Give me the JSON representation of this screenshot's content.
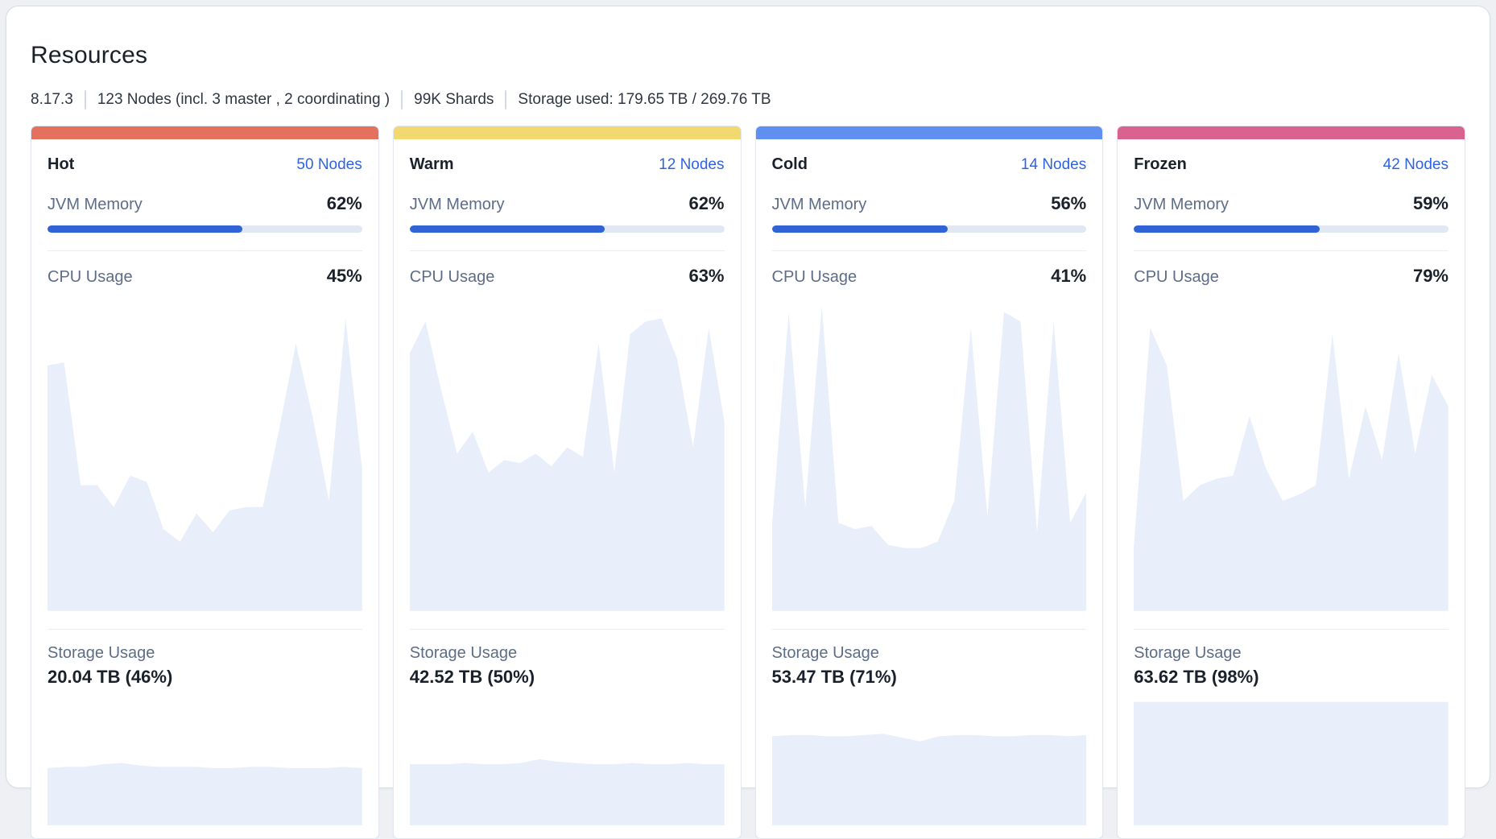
{
  "header": {
    "title": "Resources",
    "stats": [
      {
        "text": "8.17.3"
      },
      {
        "text": "123 Nodes (incl. 3 master , 2 coordinating )"
      },
      {
        "text": "99K Shards"
      },
      {
        "text": "Storage used: 179.65 TB / 269.76 TB"
      }
    ]
  },
  "labels": {
    "jvm": "JVM Memory",
    "cpu": "CPU Usage",
    "storage": "Storage Usage"
  },
  "colors": {
    "link": "#2E63E3",
    "progress_fill": "#2F63D6",
    "progress_track": "#E2E8F3",
    "chart_fill": "#E8EFFB",
    "accent_hot": "#E4705E",
    "accent_warm": "#F1D86F",
    "accent_cold": "#5E8FF1",
    "accent_frozen": "#DA628F"
  },
  "tiers": [
    {
      "name": "Hot",
      "accent": "#E4705E",
      "nodes_label": "50 Nodes",
      "jvm_percent": 62,
      "jvm_display": "62%",
      "cpu_display": "45%",
      "storage_display": "20.04 TB (46%)",
      "storage_percent": 46,
      "cpu_series": [
        78,
        79,
        40,
        40,
        33,
        43,
        41,
        26,
        22,
        31,
        25,
        32,
        33,
        33,
        58,
        85,
        62,
        35,
        93,
        45
      ],
      "storage_series": [
        45,
        46,
        46,
        48,
        49,
        47,
        46,
        46,
        46,
        45,
        45,
        46,
        46,
        45,
        45,
        45,
        46,
        45
      ]
    },
    {
      "name": "Warm",
      "accent": "#F1D86F",
      "nodes_label": "12 Nodes",
      "jvm_percent": 62,
      "jvm_display": "62%",
      "cpu_display": "63%",
      "storage_display": "42.52 TB (50%)",
      "storage_percent": 50,
      "cpu_series": [
        82,
        92,
        70,
        50,
        57,
        44,
        48,
        47,
        50,
        46,
        52,
        49,
        85,
        44,
        88,
        92,
        93,
        80,
        52,
        90,
        60
      ],
      "storage_series": [
        48,
        48,
        48,
        49,
        48,
        48,
        49,
        52,
        50,
        49,
        48,
        48,
        49,
        48,
        48,
        49,
        48,
        48
      ]
    },
    {
      "name": "Cold",
      "accent": "#5E8FF1",
      "nodes_label": "14 Nodes",
      "jvm_percent": 56,
      "jvm_display": "56%",
      "cpu_display": "41%",
      "storage_display": "53.47 TB (71%)",
      "storage_percent": 71,
      "cpu_series": [
        28,
        95,
        33,
        97,
        28,
        26,
        27,
        21,
        20,
        20,
        22,
        35,
        90,
        30,
        95,
        92,
        25,
        92,
        28,
        38
      ],
      "storage_series": [
        70,
        71,
        71,
        70,
        70,
        71,
        72,
        69,
        66,
        70,
        71,
        71,
        70,
        70,
        71,
        71,
        70,
        71
      ]
    },
    {
      "name": "Frozen",
      "accent": "#DA628F",
      "nodes_label": "42 Nodes",
      "jvm_percent": 59,
      "jvm_display": "59%",
      "cpu_display": "79%",
      "storage_display": "63.62 TB (98%)",
      "storage_percent": 98,
      "cpu_series": [
        20,
        90,
        78,
        35,
        40,
        42,
        43,
        62,
        45,
        35,
        37,
        40,
        88,
        42,
        65,
        48,
        82,
        50,
        75,
        65
      ],
      "storage_series": [
        97,
        97,
        97,
        97,
        97,
        97,
        97,
        97,
        97,
        97,
        97,
        97,
        97,
        97,
        97,
        97,
        97,
        97
      ]
    }
  ]
}
